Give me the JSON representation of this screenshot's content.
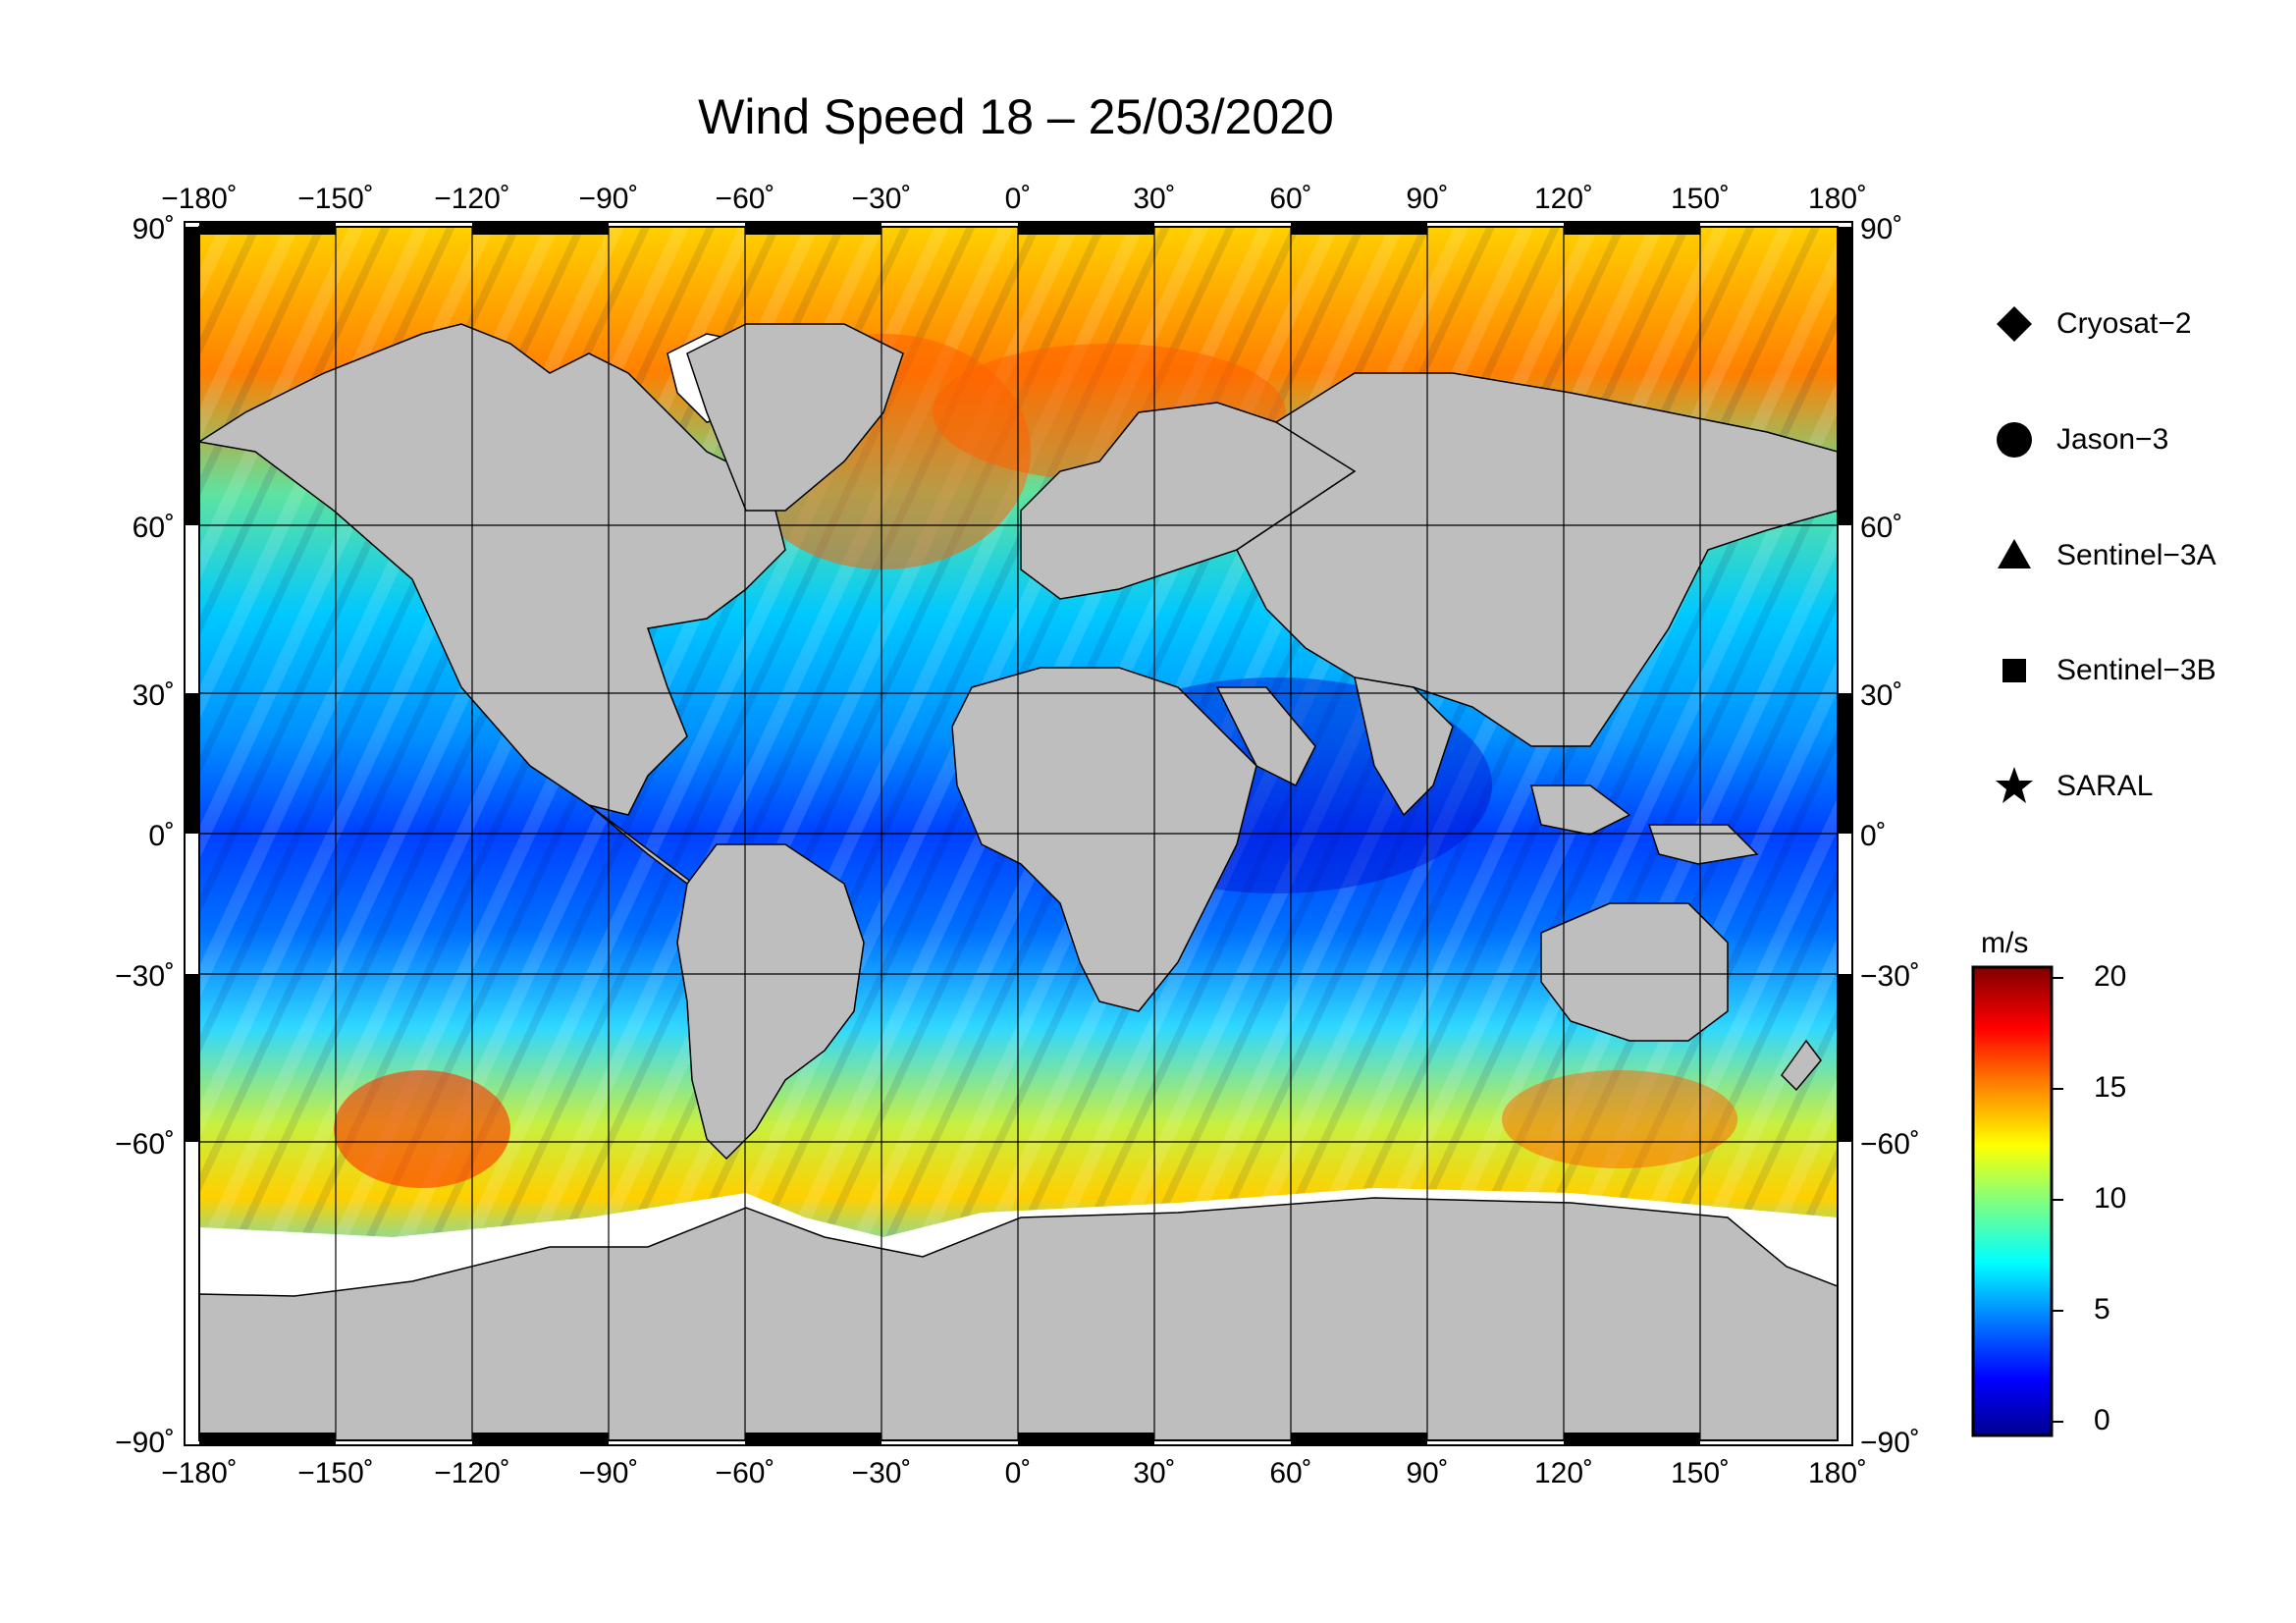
{
  "title": "Wind Speed 18 – 25/03/2020",
  "map": {
    "lon_ticks": [
      "−180˚",
      "−150˚",
      "−120˚",
      "−90˚",
      "−60˚",
      "−30˚",
      "0˚",
      "30˚",
      "60˚",
      "90˚",
      "120˚",
      "150˚",
      "180˚"
    ],
    "lat_ticks": [
      "90˚",
      "60˚",
      "30˚",
      "0˚",
      "−30˚",
      "−60˚",
      "−90˚"
    ],
    "land_color": "#bebebe",
    "ice_color": "#ffffff"
  },
  "legend": {
    "items": [
      {
        "label": "Cryosat−2",
        "icon": "diamond"
      },
      {
        "label": "Jason−3",
        "icon": "circle"
      },
      {
        "label": "Sentinel−3A",
        "icon": "triangle"
      },
      {
        "label": "Sentinel−3B",
        "icon": "square"
      },
      {
        "label": "SARAL",
        "icon": "star"
      }
    ]
  },
  "colorbar": {
    "unit": "m/s",
    "ticks": [
      "20",
      "15",
      "10",
      "5",
      "0"
    ],
    "min": 0,
    "max": 20,
    "colors": [
      "#00008f",
      "#0000ff",
      "#0080ff",
      "#00ffff",
      "#80ff80",
      "#ffff00",
      "#ff8000",
      "#ff0000",
      "#800000"
    ]
  }
}
